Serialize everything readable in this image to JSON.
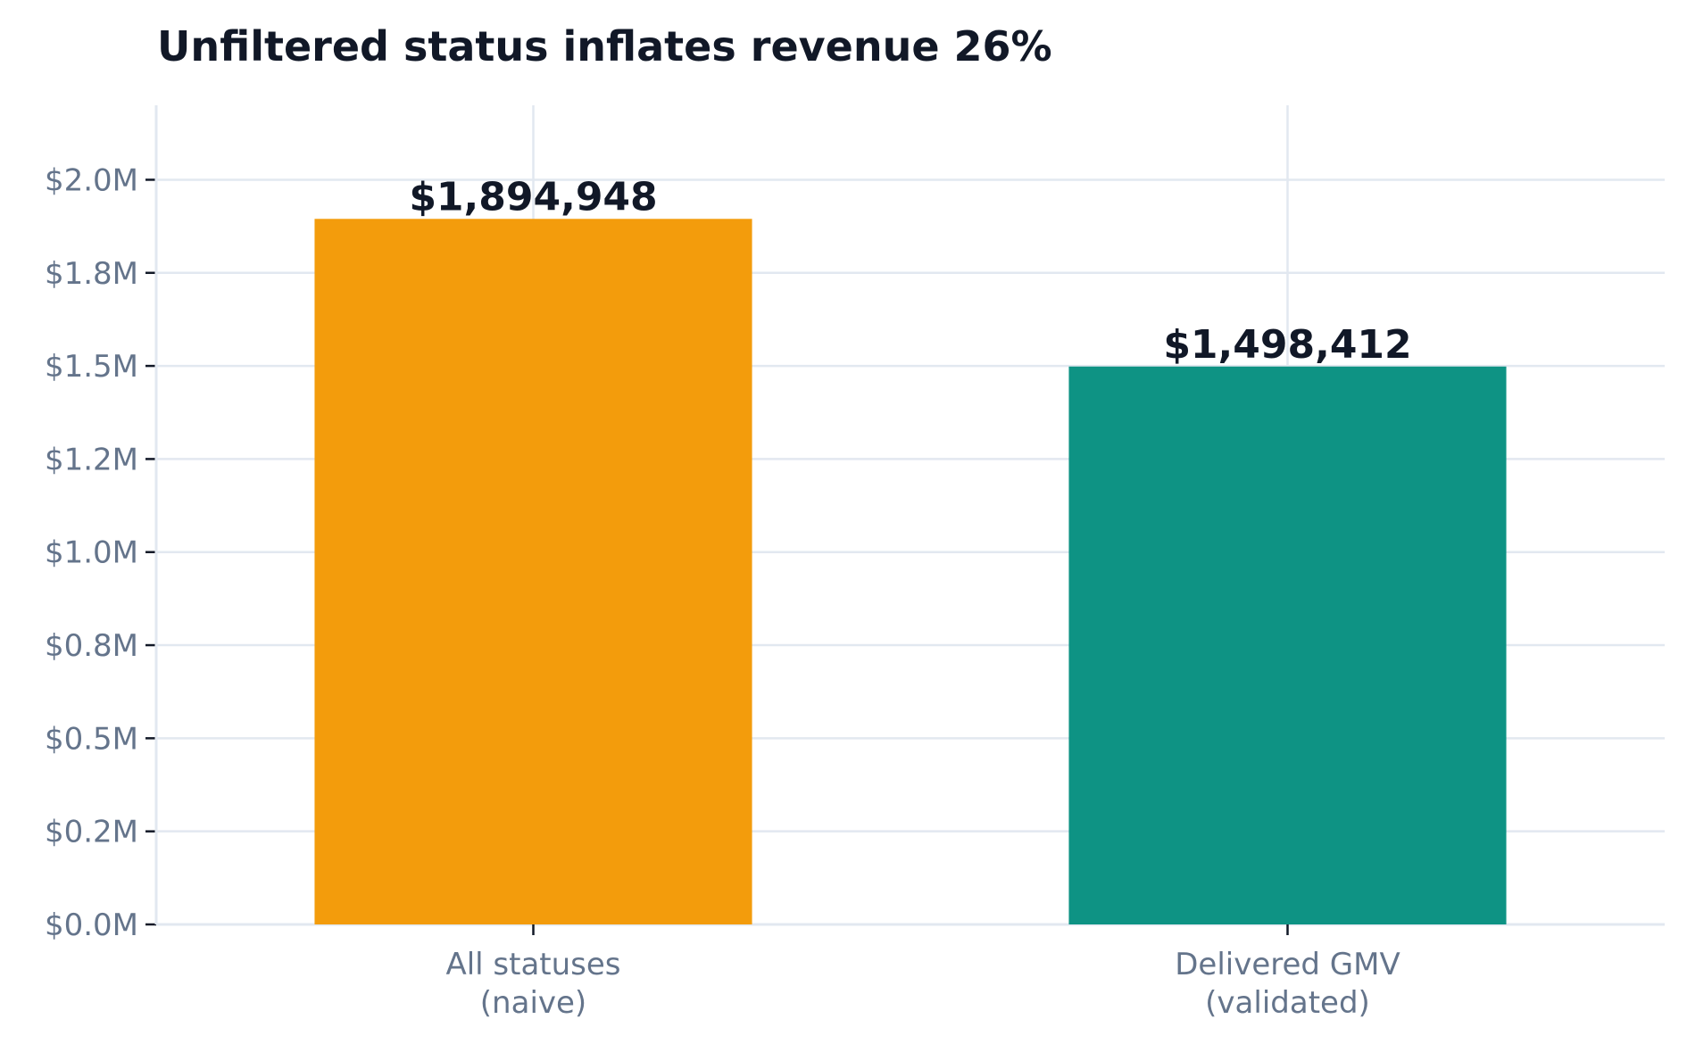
{
  "chart_data": {
    "type": "bar",
    "title": "Unfiltered status inflates revenue 26%",
    "xlabel": "",
    "ylabel": "",
    "categories": [
      [
        "All statuses",
        "(naive)"
      ],
      [
        "Delivered GMV",
        "(validated)"
      ]
    ],
    "values": [
      1894948,
      1498412
    ],
    "value_labels": [
      "$1,894,948",
      "$1,498,412"
    ],
    "bar_colors": [
      "#f39c0c",
      "#0e9384"
    ],
    "ylim": [
      0,
      2200000
    ],
    "yticks": [
      0,
      250000,
      500000,
      750000,
      1000000,
      1250000,
      1500000,
      1750000,
      2000000
    ],
    "ytick_labels": [
      "$0.0M",
      "$0.2M",
      "$0.5M",
      "$0.8M",
      "$1.0M",
      "$1.2M",
      "$1.5M",
      "$1.8M",
      "$2.0M"
    ],
    "grid": true,
    "colors": {
      "grid": "#e2e8f0",
      "axis": "#e2e8f0",
      "tick": "#111827",
      "title": "#111827",
      "tick_text": "#64748b"
    }
  }
}
